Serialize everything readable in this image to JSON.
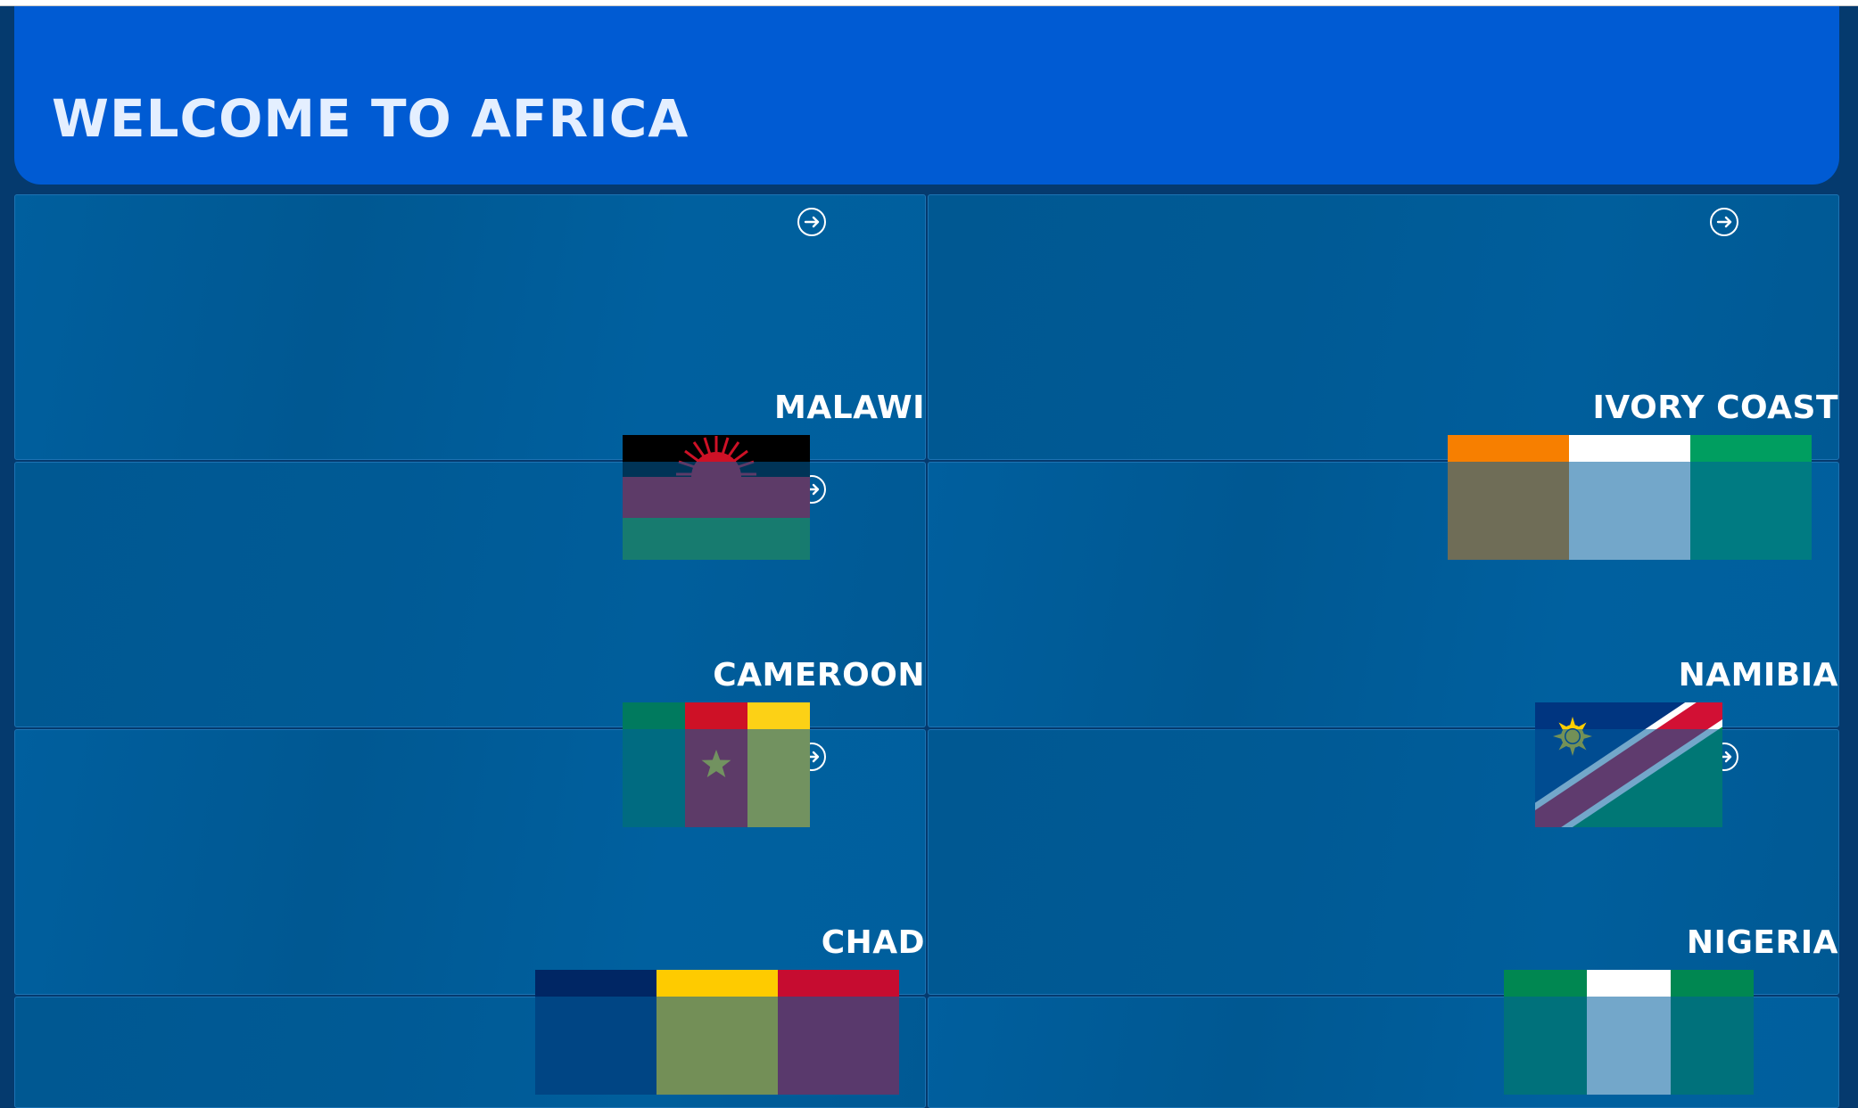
{
  "header": {
    "title": "WELCOME TO AFRICA"
  },
  "countries": [
    {
      "name": "MALAWI",
      "flag_icon": "malawi-flag-icon",
      "colors": [
        "#000000",
        "#ce1126",
        "#339e35"
      ]
    },
    {
      "name": "IVORY COAST",
      "flag_icon": "ivory-coast-flag-icon",
      "colors": [
        "#f77f00",
        "#ffffff",
        "#009e60"
      ]
    },
    {
      "name": "CAMEROON",
      "flag_icon": "cameroon-flag-icon",
      "colors": [
        "#007a5e",
        "#ce1126",
        "#fcd116"
      ]
    },
    {
      "name": "NAMIBIA",
      "flag_icon": "namibia-flag-icon",
      "colors": [
        "#003580",
        "#d21034",
        "#009543",
        "#ffce00"
      ]
    },
    {
      "name": "CHAD",
      "flag_icon": "chad-flag-icon",
      "colors": [
        "#002664",
        "#fecb00",
        "#c60c30"
      ]
    },
    {
      "name": "NIGERIA",
      "flag_icon": "nigeria-flag-icon",
      "colors": [
        "#008751",
        "#ffffff",
        "#008751"
      ]
    }
  ],
  "accent_colors": {
    "header": "#005bd3",
    "page_background": "#053a6e",
    "card_border": "#1d73b3"
  }
}
